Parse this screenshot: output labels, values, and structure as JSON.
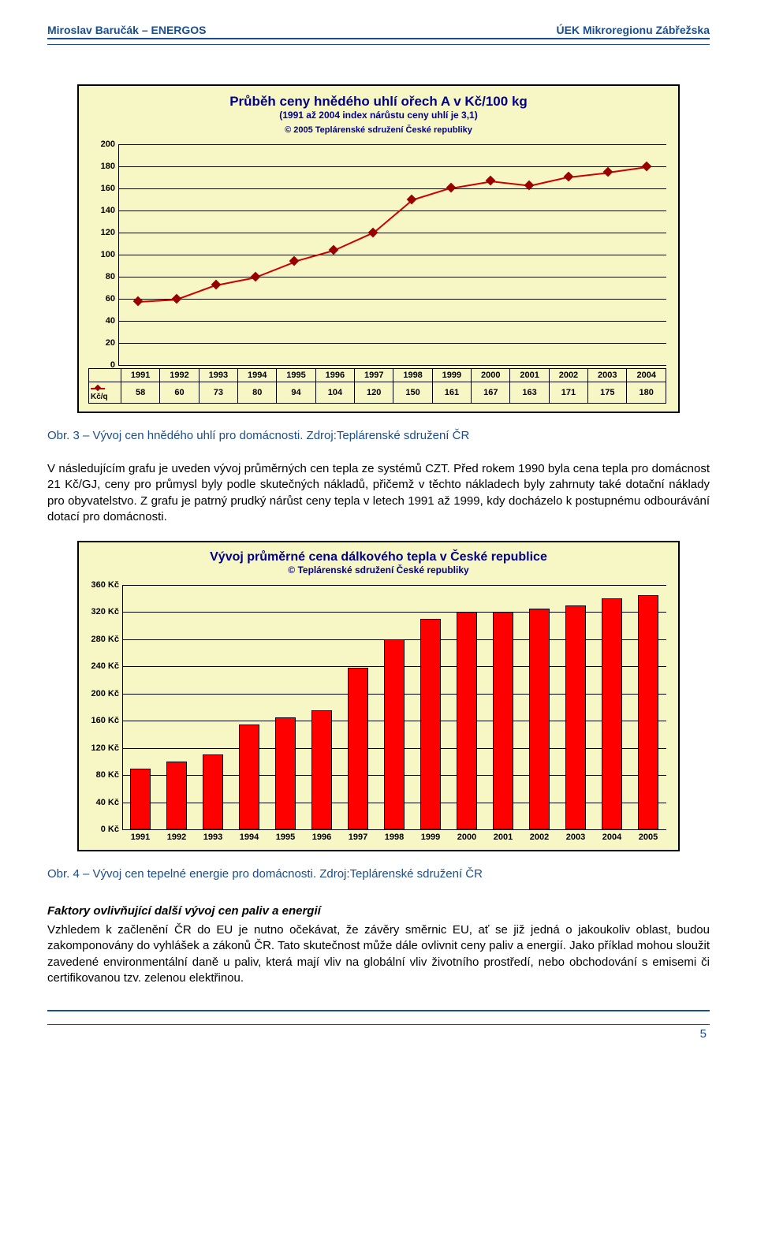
{
  "header": {
    "left": "Miroslav Baručák – ENERGOS",
    "right": "ÚEK Mikroregionu Zábřežska"
  },
  "chart1": {
    "title": "Průběh ceny hnědého uhlí ořech A v Kč/100 kg",
    "subtitle": "(1991 až 2004 index nárůstu ceny uhlí je 3,1)",
    "copyright": "© 2005 Teplárenské sdružení České republiky",
    "ylim_max": 200,
    "ytick_step": 20,
    "years": [
      "1991",
      "1992",
      "1993",
      "1994",
      "1995",
      "1996",
      "1997",
      "1998",
      "1999",
      "2000",
      "2001",
      "2002",
      "2003",
      "2004"
    ],
    "values": [
      58,
      60,
      73,
      80,
      94,
      104,
      120,
      150,
      161,
      167,
      163,
      171,
      175,
      180
    ],
    "legend_label": "Kč/q",
    "line_color": "#cc0000",
    "marker_color": "#990000"
  },
  "caption1": "Obr. 3    – Vývoj cen hnědého uhlí pro domácnosti. Zdroj:Teplárenské sdružení ČR",
  "para1": "V následujícím grafu je uveden vývoj průměrných cen tepla ze systémů CZT. Před rokem 1990 byla cena tepla pro domácnost 21 Kč/GJ, ceny pro průmysl byly podle skutečných nákladů, přičemž v těchto nákladech byly zahrnuty také dotační náklady pro obyvatelstvo. Z grafu je patrný prudký nárůst ceny tepla v letech 1991 až 1999, kdy docházelo k postupnému odbourávání dotací pro domácnosti.",
  "chart2": {
    "title": "Vývoj průměrné cena dálkového tepla v České republice",
    "copyright": "© Teplárenské sdružení České republiky",
    "ylim_max": 360,
    "ytick_step": 40,
    "yticks_labels": [
      "0 Kč",
      "40 Kč",
      "80 Kč",
      "120 Kč",
      "160 Kč",
      "200 Kč",
      "240 Kč",
      "280 Kč",
      "320 Kč",
      "360 Kč"
    ],
    "years": [
      "1991",
      "1992",
      "1993",
      "1994",
      "1995",
      "1996",
      "1997",
      "1998",
      "1999",
      "2000",
      "2001",
      "2002",
      "2003",
      "2004",
      "2005"
    ],
    "values": [
      90,
      100,
      110,
      155,
      165,
      175,
      238,
      280,
      310,
      320,
      320,
      325,
      330,
      340,
      345
    ],
    "bar_color": "#ff0000"
  },
  "caption2": "Obr. 4    – Vývoj cen tepelné energie pro domácnosti. Zdroj:Teplárenské sdružení ČR",
  "section_heading": "Faktory ovlivňující další vývoj cen paliv a energií",
  "para2": "Vzhledem k začlenění ČR do EU je nutno očekávat, že závěry směrnic EU, ať se již jedná o jakoukoliv oblast, budou zakomponovány do vyhlášek a zákonů ČR. Tato skutečnost může dále ovlivnit ceny paliv a energií. Jako příklad mohou sloužit zavedené environmentální daně u paliv, která mají vliv na globální vliv životního prostředí, nebo obchodování s emisemi či certifikovanou tzv. zelenou elektřinou.",
  "page_number": "5"
}
